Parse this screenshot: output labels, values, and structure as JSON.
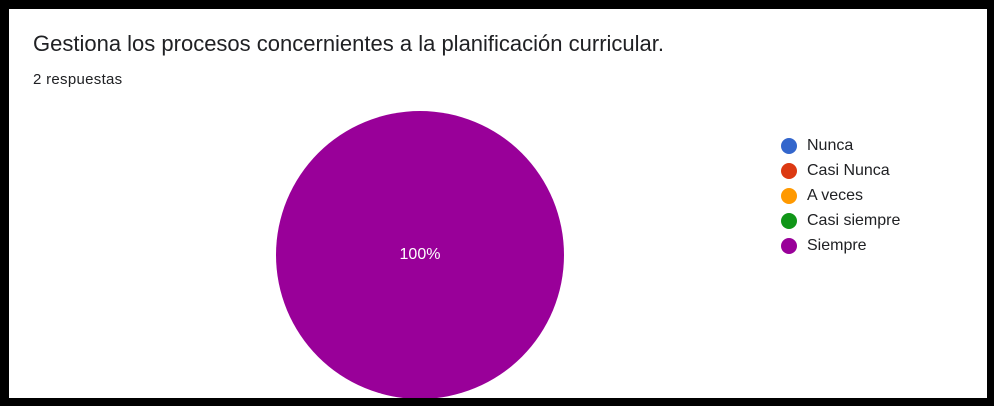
{
  "header": {
    "title": "Gestiona los procesos concernientes a la planificación curricular.",
    "responses": "2 respuestas"
  },
  "chart_data": {
    "type": "pie",
    "categories": [
      "Nunca",
      "Casi Nunca",
      "A veces",
      "Casi siempre",
      "Siempre"
    ],
    "values": [
      0,
      0,
      0,
      0,
      2
    ],
    "slice_labels": [
      "",
      "",
      "",
      "",
      "100%"
    ],
    "colors": [
      "#3366cc",
      "#dc3912",
      "#ff9900",
      "#109618",
      "#990099"
    ],
    "legend_position": "right"
  }
}
